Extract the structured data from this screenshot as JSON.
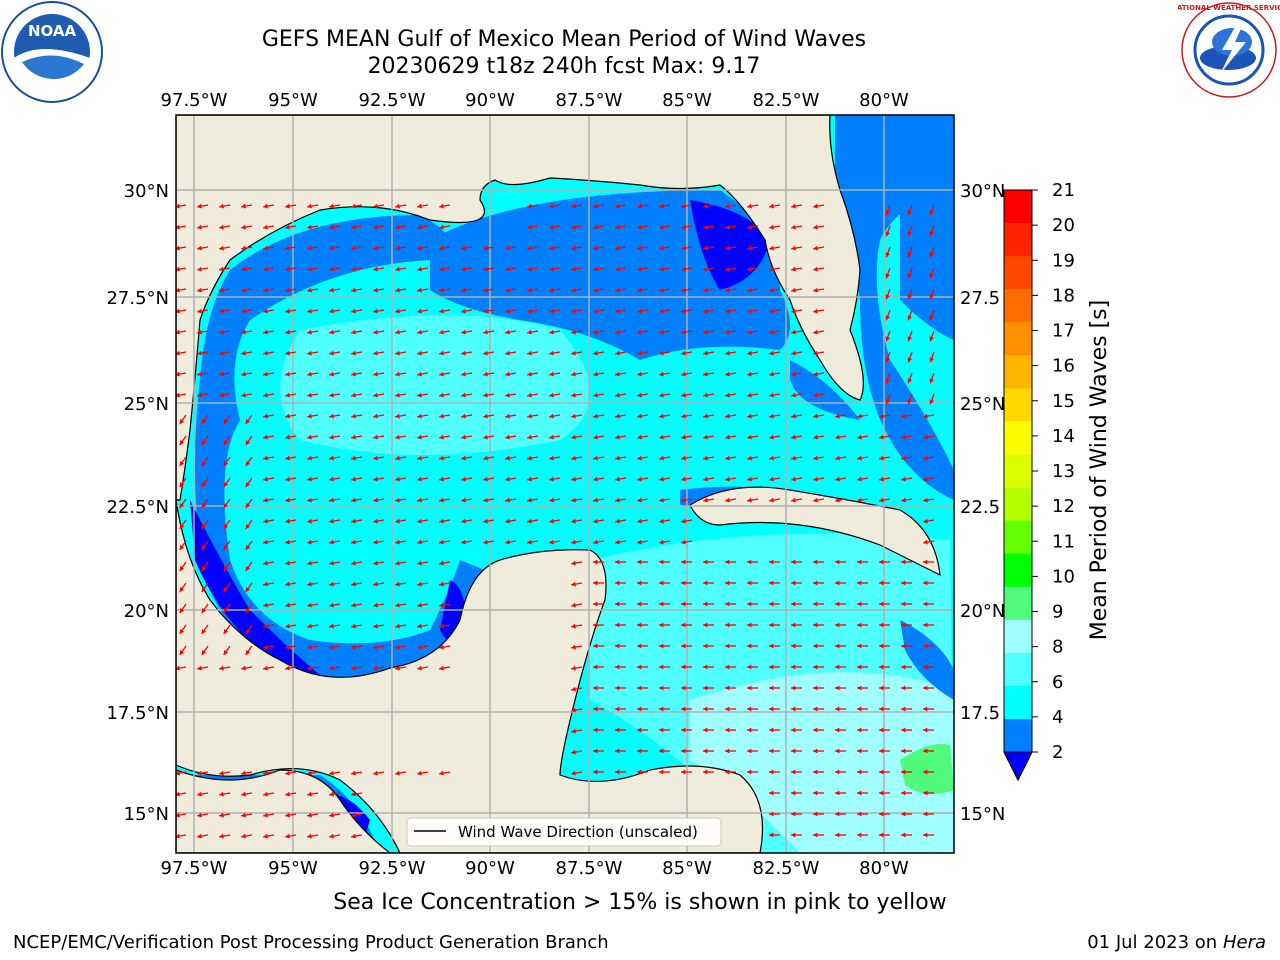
{
  "title": {
    "line1": "GEFS MEAN Gulf of Mexico Mean Period of Wind Waves",
    "line2": "20230629 t18z 240h fcst   Max: 9.17"
  },
  "caption": "Sea Ice Concentration > 15% is shown in pink to yellow",
  "footer": {
    "left": "NCEP/EMC/Verification Post Processing Product Generation Branch",
    "right_date": "01 Jul 2023 on ",
    "right_host": "Hera"
  },
  "logos": {
    "noaa": "NOAA",
    "nws": "NATIONAL WEATHER SERVICE"
  },
  "map": {
    "lon_ticks": [
      "97.5°W",
      "95°W",
      "92.5°W",
      "90°W",
      "87.5°W",
      "85°W",
      "82.5°W",
      "80°W"
    ],
    "lat_ticks_left": [
      "30°N",
      "27.5°N",
      "25°N",
      "22.5°N",
      "20°N",
      "17.5°N",
      "15°N"
    ],
    "lat_ticks_right": [
      "30°N",
      "27.5",
      "25°N",
      "22.5",
      "20°N",
      "17.5",
      "15°N"
    ],
    "legend_label": "Wind Wave Direction (unscaled)",
    "land_color": "#efecdc",
    "arrow_color": "#ff0000"
  },
  "colorbar": {
    "label": "Mean Period of Wind Waves [s]",
    "ticks": [
      "21",
      "20",
      "19",
      "18",
      "17",
      "16",
      "15",
      "14",
      "13",
      "12",
      "11",
      "10",
      "9",
      "8",
      "6",
      "4",
      "2"
    ],
    "colors_top_down": [
      "#ff0000",
      "#ff2400",
      "#ff4800",
      "#ff6c00",
      "#ff9000",
      "#ffb400",
      "#ffd800",
      "#fffc00",
      "#dcff00",
      "#b4ff00",
      "#64ff00",
      "#00ff00",
      "#50fa7b",
      "#a0ffff",
      "#50ffff",
      "#00ffff",
      "#0080ff"
    ],
    "under_color": "#0000ff"
  }
}
